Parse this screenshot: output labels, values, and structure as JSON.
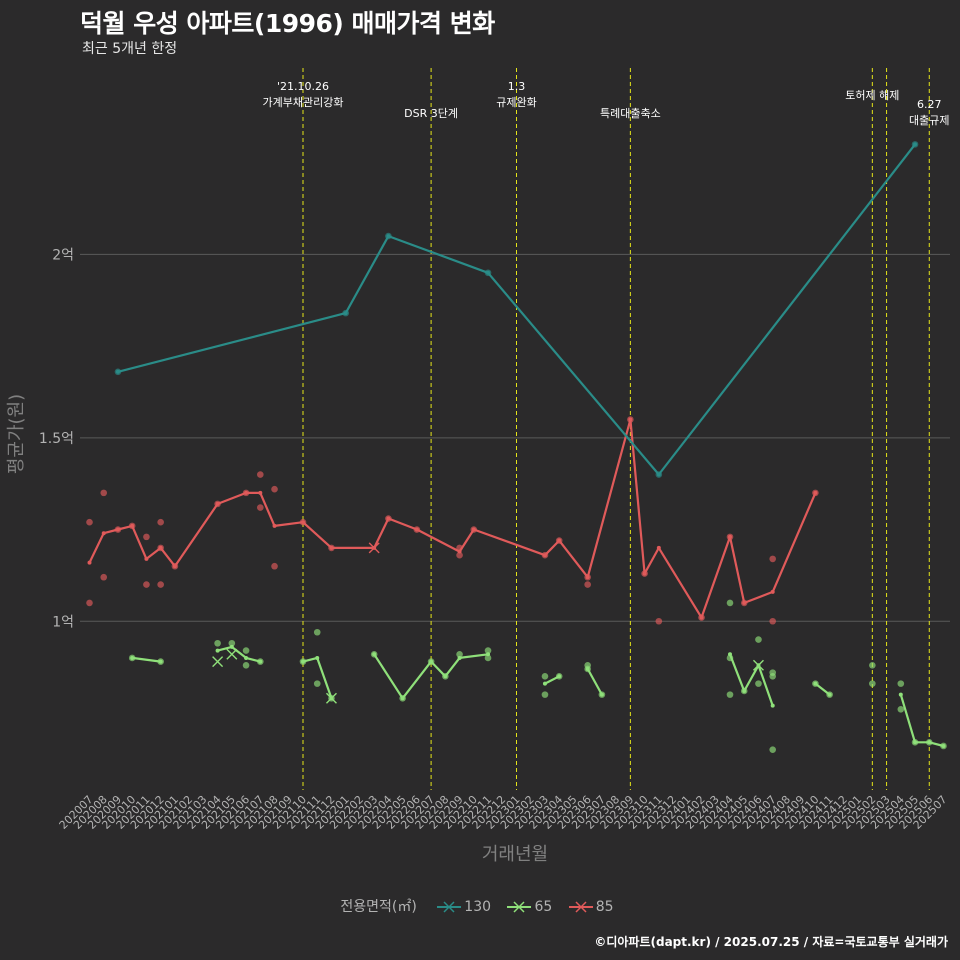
{
  "header": {
    "title": "덕월 우성 아파트(1996) 매매가격 변화",
    "subtitle": "최근 5개년 한정"
  },
  "caption": "©디아파트(dapt.kr) / 2025.07.25 / 자료=국토교통부 실거래가",
  "legend": {
    "title": "전용면적(㎡)",
    "items": [
      {
        "label": "130",
        "color": "#2a8c88"
      },
      {
        "label": "65",
        "color": "#8fe07a"
      },
      {
        "label": "85",
        "color": "#e05a5a"
      }
    ]
  },
  "chart_data": {
    "type": "line",
    "xlabel": "거래년월",
    "ylabel": "평균가(원)",
    "ylim": [
      0.54,
      2.53
    ],
    "y_unit": "억",
    "yticks": [
      {
        "value": 1,
        "label": "1억"
      },
      {
        "value": 1.5,
        "label": "1.5억"
      },
      {
        "value": 2,
        "label": "2억"
      }
    ],
    "grid": true,
    "legend_position": "bottom",
    "categories": [
      "202007",
      "202008",
      "202009",
      "202010",
      "202011",
      "202012",
      "202101",
      "202102",
      "202103",
      "202104",
      "202105",
      "202106",
      "202107",
      "202108",
      "202109",
      "202110",
      "202111",
      "202112",
      "202201",
      "202202",
      "202203",
      "202204",
      "202205",
      "202206",
      "202207",
      "202208",
      "202209",
      "202210",
      "202211",
      "202212",
      "202301",
      "202302",
      "202303",
      "202304",
      "202305",
      "202306",
      "202307",
      "202308",
      "202309",
      "202310",
      "202311",
      "202312",
      "202401",
      "202402",
      "202403",
      "202404",
      "202405",
      "202406",
      "202407",
      "202408",
      "202409",
      "202410",
      "202411",
      "202412",
      "202501",
      "202502",
      "202503",
      "202504",
      "202505",
      "202506",
      "202507"
    ],
    "series": [
      {
        "name": "130",
        "color": "#2a8c88",
        "lines": [
          [
            [
              "202009",
              1.68
            ],
            [
              "202201",
              1.84
            ],
            [
              "202204",
              2.05
            ],
            [
              "202211",
              1.95
            ],
            [
              "202311",
              1.4
            ],
            [
              "202505",
              2.3
            ]
          ]
        ],
        "points": [
          [
            "202009",
            1.68
          ],
          [
            "202201",
            1.84
          ],
          [
            "202204",
            2.05
          ],
          [
            "202211",
            1.95
          ],
          [
            "202311",
            1.4
          ],
          [
            "202505",
            2.3
          ]
        ],
        "crosses": []
      },
      {
        "name": "65",
        "color": "#8fe07a",
        "lines": [
          [
            [
              "202010",
              0.9
            ],
            [
              "202012",
              0.89
            ]
          ],
          [
            [
              "202104",
              0.92
            ],
            [
              "202105",
              0.93
            ],
            [
              "202106",
              0.9
            ],
            [
              "202107",
              0.89
            ]
          ],
          [
            [
              "202110",
              0.89
            ],
            [
              "202111",
              0.9
            ],
            [
              "202112",
              0.79
            ]
          ],
          [
            [
              "202203",
              0.91
            ],
            [
              "202205",
              0.79
            ],
            [
              "202207",
              0.89
            ],
            [
              "202208",
              0.85
            ],
            [
              "202209",
              0.9
            ],
            [
              "202211",
              0.91
            ]
          ],
          [
            [
              "202303",
              0.83
            ],
            [
              "202304",
              0.85
            ]
          ],
          [
            [
              "202306",
              0.87
            ],
            [
              "202307",
              0.8
            ]
          ],
          [
            [
              "202404",
              0.91
            ],
            [
              "202405",
              0.81
            ],
            [
              "202406",
              0.88
            ],
            [
              "202407",
              0.77
            ]
          ],
          [
            [
              "202410",
              0.83
            ],
            [
              "202411",
              0.8
            ]
          ],
          [
            [
              "202504",
              0.8
            ],
            [
              "202505",
              0.67
            ],
            [
              "202506",
              0.67
            ],
            [
              "202507",
              0.66
            ]
          ]
        ],
        "points": [
          [
            "202010",
            0.9
          ],
          [
            "202012",
            0.89
          ],
          [
            "202104",
            0.94
          ],
          [
            "202105",
            0.94
          ],
          [
            "202106",
            0.92
          ],
          [
            "202106",
            0.88
          ],
          [
            "202107",
            0.89
          ],
          [
            "202110",
            0.89
          ],
          [
            "202111",
            0.97
          ],
          [
            "202111",
            0.83
          ],
          [
            "202112",
            0.79
          ],
          [
            "202203",
            0.91
          ],
          [
            "202205",
            0.79
          ],
          [
            "202207",
            0.89
          ],
          [
            "202208",
            0.85
          ],
          [
            "202209",
            0.91
          ],
          [
            "202211",
            0.92
          ],
          [
            "202211",
            0.9
          ],
          [
            "202303",
            0.85
          ],
          [
            "202303",
            0.8
          ],
          [
            "202304",
            0.85
          ],
          [
            "202306",
            0.88
          ],
          [
            "202306",
            0.87
          ],
          [
            "202307",
            0.8
          ],
          [
            "202404",
            0.9
          ],
          [
            "202404",
            0.8
          ],
          [
            "202404",
            1.05
          ],
          [
            "202405",
            0.81
          ],
          [
            "202406",
            0.95
          ],
          [
            "202406",
            0.83
          ],
          [
            "202407",
            0.86
          ],
          [
            "202407",
            0.85
          ],
          [
            "202407",
            0.65
          ],
          [
            "202410",
            0.83
          ],
          [
            "202411",
            0.8
          ],
          [
            "202502",
            0.88
          ],
          [
            "202502",
            0.83
          ],
          [
            "202504",
            0.83
          ],
          [
            "202504",
            0.76
          ],
          [
            "202505",
            0.67
          ],
          [
            "202506",
            0.67
          ],
          [
            "202507",
            0.66
          ]
        ],
        "crosses": [
          [
            "202104",
            0.89
          ],
          [
            "202105",
            0.91
          ],
          [
            "202112",
            0.79
          ],
          [
            "202406",
            0.88
          ]
        ]
      },
      {
        "name": "85",
        "color": "#e05a5a",
        "lines": [
          [
            [
              "202007",
              1.16
            ],
            [
              "202008",
              1.24
            ],
            [
              "202009",
              1.25
            ],
            [
              "202010",
              1.26
            ],
            [
              "202011",
              1.17
            ],
            [
              "202012",
              1.2
            ],
            [
              "202101",
              1.15
            ],
            [
              "202104",
              1.32
            ],
            [
              "202106",
              1.35
            ],
            [
              "202107",
              1.35
            ],
            [
              "202108",
              1.26
            ],
            [
              "202110",
              1.27
            ],
            [
              "202112",
              1.2
            ],
            [
              "202203",
              1.2
            ],
            [
              "202204",
              1.28
            ],
            [
              "202206",
              1.25
            ],
            [
              "202209",
              1.19
            ],
            [
              "202210",
              1.25
            ],
            [
              "202303",
              1.18
            ],
            [
              "202304",
              1.22
            ],
            [
              "202306",
              1.12
            ],
            [
              "202309",
              1.55
            ],
            [
              "202310",
              1.13
            ],
            [
              "202311",
              1.2
            ],
            [
              "202402",
              1.01
            ],
            [
              "202404",
              1.23
            ],
            [
              "202405",
              1.05
            ],
            [
              "202407",
              1.08
            ],
            [
              "202410",
              1.35
            ]
          ]
        ],
        "points": [
          [
            "202007",
            1.27
          ],
          [
            "202007",
            1.05
          ],
          [
            "202008",
            1.35
          ],
          [
            "202008",
            1.12
          ],
          [
            "202009",
            1.25
          ],
          [
            "202010",
            1.26
          ],
          [
            "202011",
            1.23
          ],
          [
            "202011",
            1.1
          ],
          [
            "202012",
            1.27
          ],
          [
            "202012",
            1.2
          ],
          [
            "202012",
            1.1
          ],
          [
            "202101",
            1.15
          ],
          [
            "202104",
            1.32
          ],
          [
            "202106",
            1.35
          ],
          [
            "202107",
            1.4
          ],
          [
            "202107",
            1.31
          ],
          [
            "202108",
            1.36
          ],
          [
            "202108",
            1.15
          ],
          [
            "202110",
            1.27
          ],
          [
            "202112",
            1.2
          ],
          [
            "202204",
            1.28
          ],
          [
            "202206",
            1.25
          ],
          [
            "202209",
            1.18
          ],
          [
            "202209",
            1.2
          ],
          [
            "202210",
            1.25
          ],
          [
            "202303",
            1.18
          ],
          [
            "202304",
            1.22
          ],
          [
            "202306",
            1.1
          ],
          [
            "202306",
            1.12
          ],
          [
            "202309",
            1.55
          ],
          [
            "202310",
            1.13
          ],
          [
            "202311",
            1.0
          ],
          [
            "202402",
            1.01
          ],
          [
            "202404",
            1.23
          ],
          [
            "202405",
            1.05
          ],
          [
            "202407",
            1.17
          ],
          [
            "202407",
            1.0
          ],
          [
            "202410",
            1.35
          ]
        ],
        "crosses": [
          [
            "202203",
            1.2
          ]
        ]
      }
    ],
    "annotations": [
      {
        "x": "202110",
        "lines": [
          "'21.10.26",
          "가계부채관리강화"
        ]
      },
      {
        "x": "202207",
        "lines": [
          "DSR 3단계"
        ]
      },
      {
        "x": "202301",
        "lines": [
          "1.3",
          "규제완화"
        ]
      },
      {
        "x": "202309",
        "lines": [
          "특례대출축소"
        ]
      },
      {
        "x": "202502",
        "lines": [
          "토허제 해제"
        ]
      },
      {
        "x": "202503",
        "lines": []
      },
      {
        "x": "202506",
        "lines": [
          "6.27",
          "대출규제"
        ]
      }
    ]
  }
}
